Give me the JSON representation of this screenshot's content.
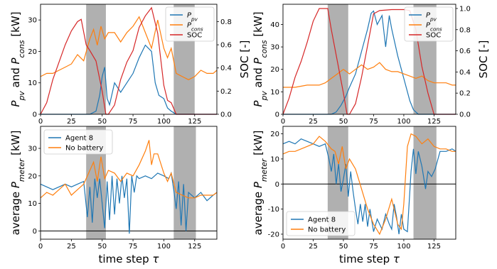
{
  "colors": {
    "pv": "#1f77b4",
    "cons": "#ff7f0e",
    "soc": "#d62728",
    "shade": "#b0b0b0",
    "zero_line": "#000000"
  },
  "shared": {
    "xlabel": "time step τ",
    "xlim": [
      0,
      143
    ],
    "xticks": [
      "0",
      "25",
      "50",
      "75",
      "100",
      "125"
    ],
    "xtick_values": [
      0,
      25,
      50,
      75,
      100,
      125
    ]
  },
  "chart_data": [
    {
      "id": "top-left",
      "type": "line",
      "ylabel": "P_pv and P_cons [kW]",
      "ylabel_right": "SOC [-]",
      "ylim": [
        0,
        35
      ],
      "yticks": [
        0,
        10,
        20,
        30
      ],
      "ylim_right": [
        0,
        0.95
      ],
      "yticks_right": [
        0.0,
        0.2,
        0.4,
        0.6,
        0.8
      ],
      "legend_position": "top-right",
      "shaded_ranges": [
        [
          37,
          53
        ],
        [
          108,
          125
        ]
      ],
      "series": [
        {
          "name": "P_pv",
          "color_key": "pv",
          "axis": "left",
          "x": [
            0,
            10,
            20,
            30,
            40,
            45,
            48,
            50,
            52,
            54,
            56,
            60,
            65,
            70,
            75,
            80,
            85,
            90,
            93,
            96,
            100,
            103,
            106,
            110,
            125,
            143
          ],
          "y": [
            0,
            0,
            0,
            0,
            0,
            1,
            6,
            12,
            15,
            5,
            3,
            10,
            7,
            10,
            13,
            18,
            22,
            20,
            10,
            6,
            5,
            2,
            1,
            0,
            0,
            0
          ]
        },
        {
          "name": "P_cons",
          "color_key": "cons",
          "axis": "left",
          "x": [
            0,
            5,
            10,
            15,
            20,
            25,
            30,
            35,
            40,
            43,
            46,
            49,
            52,
            55,
            60,
            65,
            70,
            75,
            80,
            85,
            90,
            95,
            100,
            103,
            106,
            110,
            115,
            120,
            125,
            130,
            135,
            140,
            143
          ],
          "y": [
            12,
            13,
            13,
            14,
            15,
            16,
            19,
            17,
            24,
            27,
            22,
            28,
            24,
            26,
            26,
            23,
            26,
            28,
            31,
            26,
            21,
            30,
            21,
            18,
            21,
            13,
            12,
            11,
            12,
            14,
            13,
            13,
            14
          ]
        },
        {
          "name": "SOC",
          "color_key": "soc",
          "axis": "right",
          "x": [
            0,
            5,
            10,
            15,
            20,
            25,
            30,
            33,
            37,
            40,
            45,
            50,
            53,
            55,
            60,
            65,
            70,
            75,
            80,
            85,
            90,
            95,
            100,
            103,
            106,
            110,
            125,
            143
          ],
          "y": [
            0,
            0.1,
            0.3,
            0.45,
            0.6,
            0.72,
            0.8,
            0.82,
            0.6,
            0.55,
            0.46,
            0.2,
            0.0,
            0,
            0.08,
            0.3,
            0.45,
            0.55,
            0.75,
            0.85,
            0.92,
            0.7,
            0.25,
            0.12,
            0.1,
            0,
            0,
            0
          ]
        }
      ]
    },
    {
      "id": "top-right",
      "type": "line",
      "ylabel": "P_pv and P_cons [kW]",
      "ylabel_right": "SOC [-]",
      "ylim": [
        0,
        49
      ],
      "yticks": [
        0,
        10,
        20,
        30,
        40
      ],
      "ylim_right": [
        0,
        1.04
      ],
      "yticks_right": [
        0.0,
        0.2,
        0.4,
        0.6,
        0.8,
        1.0
      ],
      "legend_position": "top-right",
      "shaded_ranges": [
        [
          37,
          54
        ],
        [
          108,
          127
        ]
      ],
      "series": [
        {
          "name": "P_pv",
          "color_key": "pv",
          "axis": "left",
          "x": [
            0,
            20,
            30,
            40,
            44,
            48,
            52,
            55,
            60,
            65,
            70,
            73,
            75,
            78,
            82,
            85,
            88,
            90,
            95,
            100,
            105,
            108,
            112,
            143
          ],
          "y": [
            0,
            0,
            0,
            0,
            1,
            4,
            8,
            12,
            18,
            28,
            38,
            45,
            46,
            40,
            44,
            30,
            44,
            38,
            26,
            16,
            6,
            2,
            0,
            0
          ]
        },
        {
          "name": "P_cons",
          "color_key": "cons",
          "axis": "left",
          "x": [
            0,
            10,
            20,
            30,
            35,
            40,
            45,
            50,
            55,
            60,
            65,
            70,
            75,
            80,
            85,
            90,
            95,
            100,
            105,
            110,
            115,
            120,
            125,
            130,
            135,
            140,
            143
          ],
          "y": [
            12,
            12,
            13,
            13,
            14,
            16,
            18,
            20,
            18,
            20,
            22,
            20,
            21,
            23,
            20,
            19,
            19,
            18,
            17,
            16,
            17,
            15,
            14,
            14,
            14,
            13,
            13
          ]
        },
        {
          "name": "SOC",
          "color_key": "soc",
          "axis": "right",
          "x": [
            0,
            5,
            10,
            15,
            20,
            25,
            30,
            33,
            37,
            40,
            45,
            50,
            53,
            55,
            60,
            65,
            70,
            75,
            80,
            90,
            100,
            105,
            110,
            115,
            120,
            125,
            143
          ],
          "y": [
            0,
            0.15,
            0.35,
            0.5,
            0.68,
            0.88,
            1.0,
            1.0,
            1.0,
            0.8,
            0.5,
            0.2,
            0,
            0,
            0.1,
            0.35,
            0.65,
            0.95,
            0.98,
            0.99,
            0.99,
            0.98,
            0.8,
            0.45,
            0.2,
            0,
            0
          ]
        }
      ]
    },
    {
      "id": "bottom-left",
      "type": "line",
      "ylabel": "average P_meter [kW]",
      "ylim": [
        -3,
        38
      ],
      "yticks": [
        0,
        10,
        20,
        30
      ],
      "zero_line": true,
      "legend_position": "top-left",
      "shaded_ranges": [
        [
          37,
          53
        ],
        [
          108,
          126
        ]
      ],
      "series": [
        {
          "name": "Agent 8",
          "color_key": "pv",
          "x": [
            0,
            5,
            10,
            15,
            20,
            25,
            30,
            35,
            38,
            40,
            42,
            44,
            46,
            48,
            50,
            52,
            54,
            56,
            58,
            60,
            62,
            64,
            66,
            68,
            70,
            72,
            74,
            76,
            78,
            80,
            85,
            90,
            95,
            100,
            104,
            106,
            108,
            110,
            112,
            114,
            116,
            118,
            120,
            125,
            130,
            135,
            140,
            143
          ],
          "y": [
            17,
            16,
            15,
            16,
            17,
            16,
            17,
            18,
            5,
            16,
            3,
            19,
            12,
            19,
            10,
            1,
            18,
            4,
            20,
            6,
            19,
            10,
            20,
            12,
            19,
            -1,
            20,
            14,
            20,
            19,
            20,
            19,
            21,
            20,
            19,
            21,
            15,
            8,
            18,
            2,
            17,
            0,
            14,
            12,
            14,
            11,
            13,
            14
          ]
        },
        {
          "name": "No battery",
          "color_key": "cons",
          "x": [
            0,
            5,
            10,
            15,
            20,
            25,
            30,
            35,
            40,
            43,
            46,
            49,
            52,
            55,
            60,
            65,
            70,
            75,
            80,
            85,
            88,
            90,
            92,
            95,
            100,
            103,
            106,
            110,
            115,
            120,
            125,
            130,
            135,
            140,
            143
          ],
          "y": [
            12,
            14,
            13,
            15,
            17,
            13,
            15,
            17,
            22,
            25,
            18,
            27,
            19,
            22,
            21,
            18,
            21,
            20,
            24,
            29,
            33,
            24,
            28,
            28,
            21,
            18,
            21,
            14,
            13,
            12,
            12,
            13,
            13,
            13,
            14
          ]
        }
      ]
    },
    {
      "id": "bottom-right",
      "type": "line",
      "ylabel": "average P_meter [kW]",
      "ylim": [
        -22,
        23
      ],
      "yticks": [
        -20,
        -10,
        0,
        10,
        20
      ],
      "zero_line": true,
      "legend_position": "bottom-left",
      "shaded_ranges": [
        [
          37,
          54
        ],
        [
          108,
          127
        ]
      ],
      "series": [
        {
          "name": "Agent 8",
          "color_key": "pv",
          "x": [
            0,
            5,
            10,
            15,
            20,
            25,
            30,
            35,
            38,
            40,
            42,
            44,
            46,
            48,
            50,
            52,
            54,
            56,
            58,
            60,
            62,
            64,
            66,
            68,
            70,
            72,
            75,
            78,
            82,
            85,
            88,
            90,
            92,
            94,
            96,
            98,
            100,
            103,
            106,
            108,
            110,
            112,
            115,
            118,
            120,
            123,
            126,
            130,
            135,
            140,
            143
          ],
          "y": [
            16,
            17,
            16,
            18,
            17,
            16,
            15,
            16,
            10,
            5,
            12,
            0,
            8,
            -3,
            2,
            8,
            -5,
            5,
            -3,
            -10,
            -16,
            -8,
            -15,
            -8,
            -17,
            -10,
            -19,
            -14,
            -18,
            -12,
            -16,
            -18,
            -8,
            -13,
            -20,
            -12,
            -18,
            -19,
            5,
            14,
            4,
            13,
            7,
            -2,
            5,
            3,
            6,
            13,
            13,
            14,
            13
          ]
        },
        {
          "name": "No battery",
          "color_key": "cons",
          "x": [
            0,
            5,
            10,
            15,
            20,
            25,
            30,
            35,
            40,
            43,
            46,
            49,
            52,
            55,
            60,
            65,
            70,
            75,
            80,
            85,
            90,
            95,
            98,
            100,
            103,
            106,
            110,
            115,
            120,
            125,
            130,
            135,
            140,
            143
          ],
          "y": [
            12,
            13,
            13,
            14,
            15,
            16,
            19,
            17,
            14,
            13,
            8,
            15,
            6,
            10,
            6,
            -2,
            -10,
            -16,
            -20,
            -14,
            -6,
            -16,
            -18,
            -8,
            15,
            20,
            19,
            16,
            18,
            15,
            14,
            14,
            13,
            13
          ]
        }
      ]
    }
  ]
}
